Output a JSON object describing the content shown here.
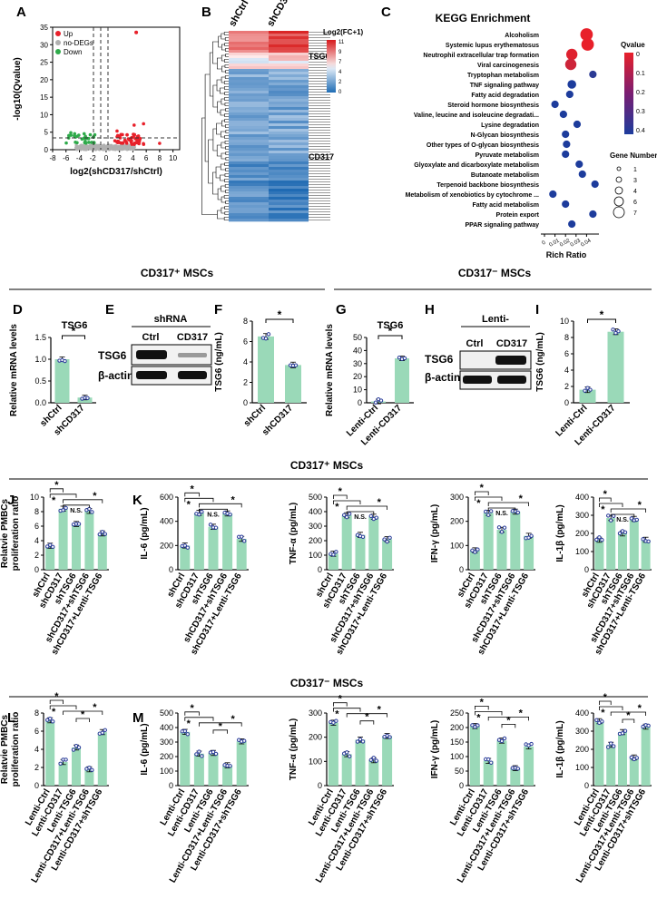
{
  "panels": {
    "A": "A",
    "B": "B",
    "C": "C",
    "D": "D",
    "E": "E",
    "F": "F",
    "G": "G",
    "H": "H",
    "I": "I",
    "J": "J",
    "K": "K",
    "L": "L",
    "M": "M"
  },
  "sections": {
    "pos_title": "CD317⁺ MSCs",
    "neg_title": "CD317⁻ MSCs",
    "pos_title2": "CD317⁺ MSCs",
    "neg_title2": "CD317⁻ MSCs"
  },
  "volcano": {
    "ylabel": "-log10(Qvalue)",
    "xlabel": "log2(shCD317/shCtrl)",
    "legend": [
      {
        "label": "Up",
        "color": "#e8202a"
      },
      {
        "label": "no-DEGs",
        "color": "#b0b0b0"
      },
      {
        "label": "Down",
        "color": "#2eaa4a"
      }
    ],
    "xticks": [
      "-8",
      "-6",
      "-4",
      "-2",
      "0",
      "2",
      "4",
      "6",
      "8",
      "10"
    ],
    "yticks": [
      "0",
      "5",
      "10",
      "15",
      "20",
      "25",
      "30",
      "35"
    ]
  },
  "heatmap": {
    "col1": "shCtrl",
    "col2": "shCD317",
    "legend_title": "Log2(FC+1)",
    "legend_ticks": [
      "11",
      "9",
      "7",
      "4",
      "2",
      "0"
    ],
    "label_tsg6": "TSG6",
    "label_cd317": "CD317"
  },
  "kegg": {
    "title": "KEGG Enrichment",
    "xlabel": "Rich Ratio",
    "xticks": [
      "0",
      "0.01",
      "0.02",
      "0.03",
      "0.04"
    ],
    "qvalue_title": "Qvalue",
    "qvalue_ticks": [
      "0",
      "0.1",
      "0.2",
      "0.3",
      "0.4"
    ],
    "gene_title": "Gene Number",
    "gene_ticks": [
      "1",
      "3",
      "4",
      "6",
      "7"
    ],
    "pathways": [
      {
        "name": "Alcoholism",
        "x": 0.04,
        "q": 0.0,
        "n": 7
      },
      {
        "name": "Systemic lupus erythematosus",
        "x": 0.041,
        "q": 0.0,
        "n": 7
      },
      {
        "name": "Neutrophil extracellular trap formation",
        "x": 0.026,
        "q": 0.02,
        "n": 6
      },
      {
        "name": "Viral carcinogenesis",
        "x": 0.025,
        "q": 0.06,
        "n": 6
      },
      {
        "name": "Tryptophan metabolism",
        "x": 0.046,
        "q": 0.42,
        "n": 3
      },
      {
        "name": "TNF signaling pathway",
        "x": 0.026,
        "q": 0.45,
        "n": 4
      },
      {
        "name": "Fatty acid degradation",
        "x": 0.024,
        "q": 0.45,
        "n": 3
      },
      {
        "name": "Steroid hormone biosynthesis",
        "x": 0.01,
        "q": 0.45,
        "n": 3
      },
      {
        "name": "Valine, leucine and isoleucine degradati...",
        "x": 0.018,
        "q": 0.45,
        "n": 3
      },
      {
        "name": "Lysine degradation",
        "x": 0.031,
        "q": 0.45,
        "n": 3
      },
      {
        "name": "N-Glycan biosynthesis",
        "x": 0.02,
        "q": 0.45,
        "n": 3
      },
      {
        "name": "Other types of O-glycan biosynthesis",
        "x": 0.021,
        "q": 0.45,
        "n": 3
      },
      {
        "name": "Pyruvate metabolism",
        "x": 0.02,
        "q": 0.45,
        "n": 3
      },
      {
        "name": "Glyoxylate and dicarboxylate metabolism",
        "x": 0.033,
        "q": 0.45,
        "n": 3
      },
      {
        "name": "Butanoate metabolism",
        "x": 0.036,
        "q": 0.45,
        "n": 3
      },
      {
        "name": "Terpenoid backbone biosynthesis",
        "x": 0.048,
        "q": 0.45,
        "n": 3
      },
      {
        "name": "Metabolism of xenobiotics by cytochrome ...",
        "x": 0.008,
        "q": 0.45,
        "n": 3
      },
      {
        "name": "Fatty acid metabolism",
        "x": 0.02,
        "q": 0.45,
        "n": 3
      },
      {
        "name": "Protein export",
        "x": 0.046,
        "q": 0.45,
        "n": 3
      },
      {
        "name": "PPAR signaling pathway",
        "x": 0.026,
        "q": 0.45,
        "n": 3
      }
    ]
  },
  "blots": {
    "E": {
      "header": "shRNA",
      "lanes": [
        "Ctrl",
        "CD317"
      ],
      "bands": [
        "TSG6",
        "β-actin"
      ]
    },
    "H": {
      "header": "Lenti-",
      "lanes": [
        "Ctrl",
        "CD317"
      ],
      "bands": [
        "TSG6",
        "β-actin"
      ]
    }
  },
  "chart_data": [
    {
      "panel": "D",
      "type": "bar",
      "title": "TSG6",
      "ylabel": "Relative mRNA levels",
      "categories": [
        "shCtrl",
        "shCD317"
      ],
      "values": [
        1.0,
        0.12
      ],
      "ylim": [
        0,
        1.5
      ],
      "yticks": [
        "0.0",
        "0.5",
        "1.0",
        "1.5"
      ],
      "sig": "*"
    },
    {
      "panel": "F",
      "type": "bar",
      "ylabel": "TSG6 (ng/mL)",
      "categories": [
        "shCtrl",
        "shCD317"
      ],
      "values": [
        6.5,
        3.7
      ],
      "ylim": [
        0,
        8
      ],
      "yticks": [
        "0",
        "2",
        "4",
        "6",
        "8"
      ],
      "sig": "*"
    },
    {
      "panel": "G",
      "type": "bar",
      "title": "TSG6",
      "ylabel": "Relative mRNA levels",
      "categories": [
        "Lenti-Ctrl",
        "Lenti-CD317"
      ],
      "values": [
        1.0,
        34
      ],
      "ylim": [
        0,
        50
      ],
      "yticks": [
        "0",
        "10",
        "20",
        "30",
        "40",
        "50"
      ],
      "sig": "*"
    },
    {
      "panel": "I",
      "type": "bar",
      "ylabel": "TSG6 (ng/mL)",
      "categories": [
        "Lenti-Ctrl",
        "Lenti-CD317"
      ],
      "values": [
        1.6,
        8.7
      ],
      "ylim": [
        0,
        10
      ],
      "yticks": [
        "0",
        "2",
        "4",
        "6",
        "8",
        "10"
      ],
      "sig": "*"
    },
    {
      "panel": "J",
      "type": "bar",
      "ylabel": "Relatvie PMBCs proliferation ratio",
      "categories": [
        "shCtrl",
        "shCD317",
        "shTSG6",
        "shCD317+shTSG6",
        "shCD317+Lenti-TSG6"
      ],
      "values": [
        3.3,
        8.4,
        6.3,
        8.1,
        5.0
      ],
      "ylim": [
        0,
        10
      ],
      "yticks": [
        "0",
        "2",
        "4",
        "6",
        "8",
        "10"
      ],
      "ns": "N.S."
    },
    {
      "panel": "K1",
      "type": "bar",
      "ylabel": "IL-6 (pg/mL)",
      "categories": [
        "shCtrl",
        "shCD317",
        "shTSG6",
        "shCD317+shTSG6",
        "shCD317+Lenti-TSG6"
      ],
      "values": [
        200,
        470,
        355,
        465,
        255
      ],
      "ylim": [
        0,
        600
      ],
      "yticks": [
        "0",
        "200",
        "400",
        "600"
      ],
      "ns": "N.S."
    },
    {
      "panel": "K2",
      "type": "bar",
      "ylabel": "TNF-α (pg/mL)",
      "categories": [
        "shCtrl",
        "shCD317",
        "shTSG6",
        "shCD317+shTSG6",
        "shCD317+Lenti-TSG6"
      ],
      "values": [
        110,
        375,
        240,
        365,
        210
      ],
      "ylim": [
        0,
        500
      ],
      "yticks": [
        "0",
        "100",
        "200",
        "300",
        "400",
        "500"
      ],
      "ns": "N.S."
    },
    {
      "panel": "K3",
      "type": "bar",
      "ylabel": "IFN-γ (pg/mL)",
      "categories": [
        "shCtrl",
        "shCD317",
        "shTSG6",
        "shCD317+shTSG6",
        "shCD317+Lenti-TSG6"
      ],
      "values": [
        80,
        235,
        165,
        240,
        140
      ],
      "ylim": [
        0,
        300
      ],
      "yticks": [
        "0",
        "100",
        "200",
        "300"
      ],
      "ns": "N.S."
    },
    {
      "panel": "K4",
      "type": "bar",
      "ylabel": "IL-1β (pg/mL)",
      "categories": [
        "shCtrl",
        "shCD317",
        "shTSG6",
        "shCD317+shTSG6",
        "shCD317+Lenti-TSG6"
      ],
      "values": [
        165,
        285,
        200,
        280,
        165
      ],
      "ylim": [
        0,
        400
      ],
      "yticks": [
        "0",
        "100",
        "200",
        "300",
        "400"
      ],
      "ns": "N.S."
    },
    {
      "panel": "L",
      "type": "bar",
      "ylabel": "Relatvie PMBCs proliferation ratio",
      "categories": [
        "Lenti-Ctrl",
        "Lenti-CD317",
        "Lenti-TSG6",
        "Lenti-CD317+Lenti-TSG6",
        "Lenti-CD317+shTSG6"
      ],
      "values": [
        7.2,
        2.6,
        4.2,
        1.8,
        5.9
      ],
      "ylim": [
        0,
        8
      ],
      "yticks": [
        "0",
        "2",
        "4",
        "6",
        "8"
      ]
    },
    {
      "panel": "M1",
      "type": "bar",
      "ylabel": "IL-6 (pg/mL)",
      "categories": [
        "Lenti-Ctrl",
        "Lenti-CD317",
        "Lenti-TSG6",
        "Lenti-CD317+Lenti-TSG6",
        "Lenti-CD317+shTSG6"
      ],
      "values": [
        370,
        220,
        225,
        140,
        305
      ],
      "ylim": [
        0,
        500
      ],
      "yticks": [
        "0",
        "100",
        "200",
        "300",
        "400",
        "500"
      ]
    },
    {
      "panel": "M2",
      "type": "bar",
      "ylabel": "TNF-α (pg/mL)",
      "categories": [
        "Lenti-Ctrl",
        "Lenti-CD317",
        "Lenti-TSG6",
        "Lenti-CD317+Lenti-TSG6",
        "Lenti-CD317+shTSG6"
      ],
      "values": [
        260,
        130,
        190,
        105,
        205
      ],
      "ylim": [
        0,
        300
      ],
      "yticks": [
        "0",
        "100",
        "200",
        "300"
      ]
    },
    {
      "panel": "M3",
      "type": "bar",
      "ylabel": "IFN-γ (pg/mL)",
      "categories": [
        "Lenti-Ctrl",
        "Lenti-CD317",
        "Lenti-TSG6",
        "Lenti-CD317+Lenti-TSG6",
        "Lenti-CD317+shTSG6"
      ],
      "values": [
        205,
        85,
        155,
        60,
        135
      ],
      "ylim": [
        0,
        250
      ],
      "yticks": [
        "0",
        "50",
        "100",
        "150",
        "200",
        "250"
      ]
    },
    {
      "panel": "M4",
      "type": "bar",
      "ylabel": "IL-1β (pg/mL)",
      "categories": [
        "Lenti-Ctrl",
        "Lenti-CD317",
        "Lenti-TSG6",
        "Lenti-CD317+Lenti-TSG6",
        "Lenti-CD317+shTSG6"
      ],
      "values": [
        355,
        225,
        295,
        155,
        325
      ],
      "ylim": [
        0,
        400
      ],
      "yticks": [
        "0",
        "100",
        "200",
        "300",
        "400"
      ]
    }
  ],
  "colors": {
    "bar": "#9ad9b8",
    "dot": "#2b3d9a",
    "up": "#e8202a",
    "down": "#2eaa4a",
    "nodeg": "#b0b0b0"
  }
}
